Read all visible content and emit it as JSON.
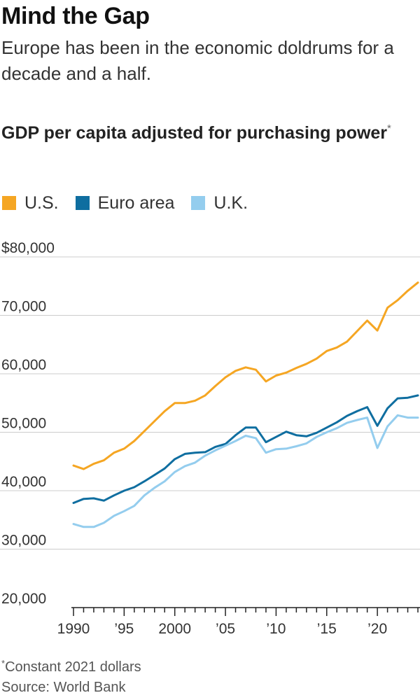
{
  "headline": "Mind the Gap",
  "dek": "Europe has been in the economic doldrums for a decade and a half.",
  "chart_title": "GDP per capita adjusted for purchasing power",
  "chart_title_marker": "*",
  "footnote_marker": "*",
  "footnote_text": "Constant 2021 dollars",
  "source": "Source: World Bank",
  "colors": {
    "us": "#f5a623",
    "euro": "#0f6ea0",
    "uk": "#94cdee",
    "grid": "#cccccc",
    "axis": "#222222"
  },
  "chart_data": {
    "type": "line",
    "title": "GDP per capita adjusted for purchasing power",
    "xlabel": "",
    "ylabel": "",
    "ylim": [
      20000,
      80000
    ],
    "xlim": [
      1990,
      2024
    ],
    "grid": true,
    "legend": "top-left",
    "y_ticks": [
      {
        "value": 80000,
        "label": "$80,000"
      },
      {
        "value": 70000,
        "label": "70,000"
      },
      {
        "value": 60000,
        "label": "60,000"
      },
      {
        "value": 50000,
        "label": "50,000"
      },
      {
        "value": 40000,
        "label": "40,000"
      },
      {
        "value": 30000,
        "label": "30,000"
      },
      {
        "value": 20000,
        "label": "20,000"
      }
    ],
    "x_ticks": [
      {
        "value": 1990,
        "label": "1990"
      },
      {
        "value": 1995,
        "label": "’95"
      },
      {
        "value": 2000,
        "label": "2000"
      },
      {
        "value": 2005,
        "label": "’05"
      },
      {
        "value": 2010,
        "label": "’10"
      },
      {
        "value": 2015,
        "label": "’15"
      },
      {
        "value": 2020,
        "label": "’20"
      }
    ],
    "x": [
      1990,
      1991,
      1992,
      1993,
      1994,
      1995,
      1996,
      1997,
      1998,
      1999,
      2000,
      2001,
      2002,
      2003,
      2004,
      2005,
      2006,
      2007,
      2008,
      2009,
      2010,
      2011,
      2012,
      2013,
      2014,
      2015,
      2016,
      2017,
      2018,
      2019,
      2020,
      2021,
      2022,
      2023,
      2024
    ],
    "series": [
      {
        "key": "us",
        "name": "U.S.",
        "values": [
          44300,
          43700,
          44600,
          45200,
          46500,
          47200,
          48500,
          50200,
          51900,
          53600,
          55000,
          55000,
          55400,
          56300,
          57900,
          59400,
          60500,
          61100,
          60700,
          58700,
          59700,
          60200,
          61000,
          61700,
          62600,
          63900,
          64500,
          65500,
          67300,
          69100,
          67400,
          71300,
          72600,
          74200,
          75600
        ]
      },
      {
        "key": "euro",
        "name": "Euro area",
        "values": [
          37900,
          38600,
          38700,
          38300,
          39200,
          40000,
          40600,
          41600,
          42700,
          43800,
          45400,
          46300,
          46500,
          46600,
          47500,
          48000,
          49500,
          50800,
          50800,
          48300,
          49200,
          50100,
          49500,
          49300,
          49900,
          50800,
          51700,
          52800,
          53600,
          54300,
          51100,
          54100,
          55800,
          55900,
          56300
        ]
      },
      {
        "key": "uk",
        "name": "U.K.",
        "values": [
          34300,
          33800,
          33800,
          34500,
          35700,
          36500,
          37400,
          39200,
          40500,
          41600,
          43200,
          44200,
          44800,
          46000,
          46900,
          47700,
          48500,
          49400,
          49000,
          46500,
          47100,
          47200,
          47600,
          48100,
          49200,
          50000,
          50700,
          51600,
          52100,
          52500,
          47300,
          51000,
          52900,
          52500,
          52500
        ]
      }
    ]
  }
}
